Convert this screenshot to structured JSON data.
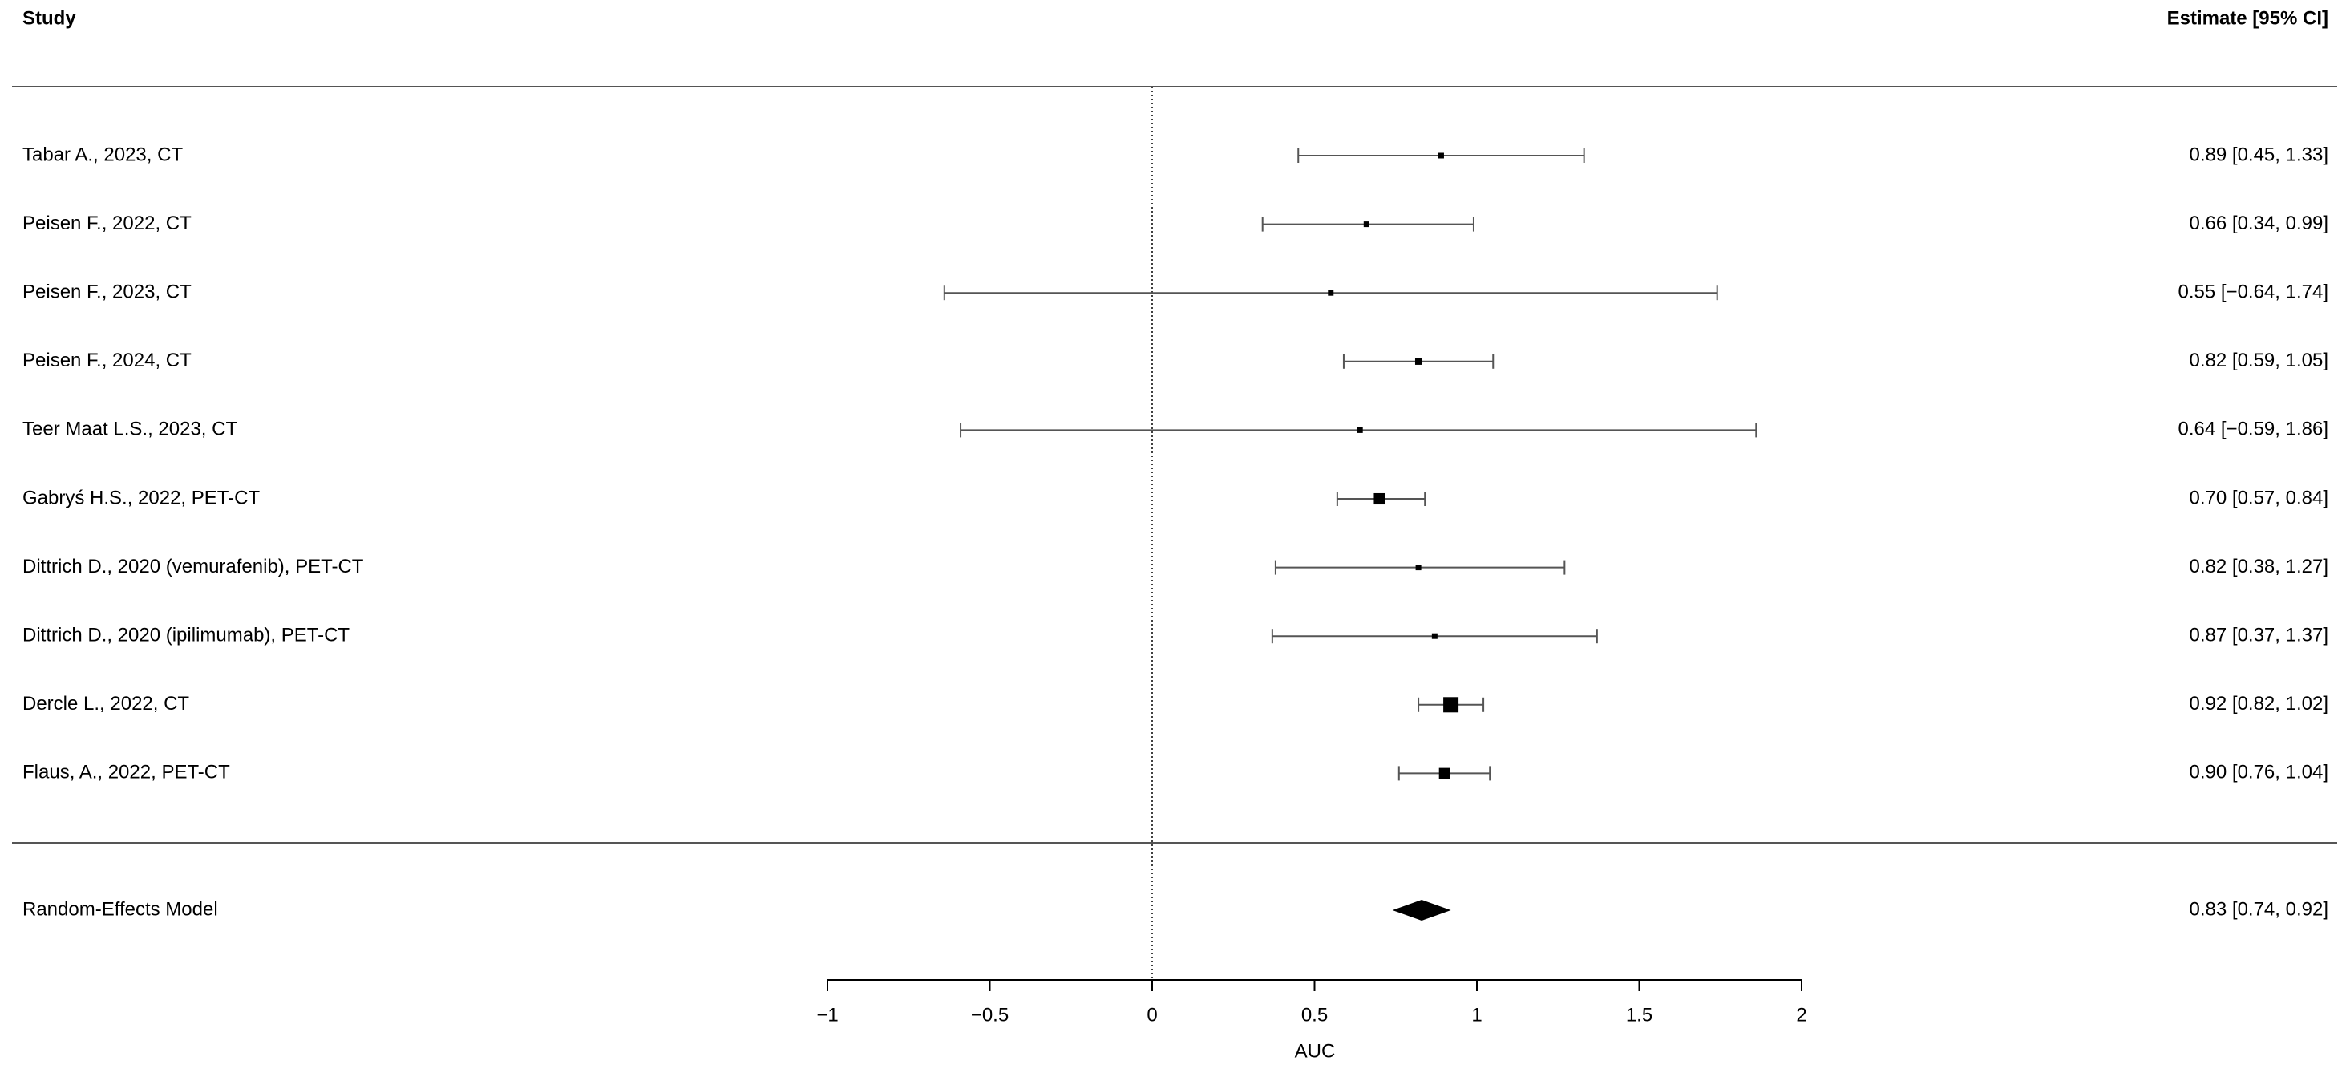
{
  "chart_data": {
    "type": "forest",
    "study_header": "Study",
    "estimate_header": "Estimate [95% CI]",
    "xlabel": "AUC",
    "xlim": [
      -1,
      2
    ],
    "xticks": [
      {
        "value": -1,
        "label": "−1"
      },
      {
        "value": -0.5,
        "label": "−0.5"
      },
      0,
      0.5,
      1,
      1.5,
      2
    ],
    "refline": 0,
    "color": "#000000",
    "studies": [
      {
        "label": "Tabar A., 2023, CT",
        "estimate": 0.89,
        "lower": 0.45,
        "upper": 1.33,
        "estimate_label": "0.89 [0.45, 1.33]"
      },
      {
        "label": "Peisen F., 2022, CT",
        "estimate": 0.66,
        "lower": 0.34,
        "upper": 0.99,
        "estimate_label": "0.66 [0.34, 0.99]"
      },
      {
        "label": "Peisen F., 2023, CT",
        "estimate": 0.55,
        "lower": -0.64,
        "upper": 1.74,
        "estimate_label": "0.55 [−0.64, 1.74]"
      },
      {
        "label": "Peisen F., 2024, CT",
        "estimate": 0.82,
        "lower": 0.59,
        "upper": 1.05,
        "estimate_label": "0.82 [0.59, 1.05]"
      },
      {
        "label": "Teer Maat L.S., 2023, CT",
        "estimate": 0.64,
        "lower": -0.59,
        "upper": 1.86,
        "estimate_label": "0.64 [−0.59, 1.86]"
      },
      {
        "label": "Gabryś H.S., 2022, PET-CT",
        "estimate": 0.7,
        "lower": 0.57,
        "upper": 0.84,
        "estimate_label": "0.70 [0.57, 0.84]"
      },
      {
        "label": "Dittrich D., 2020 (vemurafenib), PET-CT",
        "estimate": 0.82,
        "lower": 0.38,
        "upper": 1.27,
        "estimate_label": "0.82 [0.38, 1.27]"
      },
      {
        "label": "Dittrich D., 2020 (ipilimumab), PET-CT",
        "estimate": 0.87,
        "lower": 0.37,
        "upper": 1.37,
        "estimate_label": "0.87 [0.37, 1.37]"
      },
      {
        "label": "Dercle L., 2022, CT",
        "estimate": 0.92,
        "lower": 0.82,
        "upper": 1.02,
        "estimate_label": "0.92 [0.82, 1.02]"
      },
      {
        "label": "Flaus, A., 2022, PET-CT",
        "estimate": 0.9,
        "lower": 0.76,
        "upper": 1.04,
        "estimate_label": "0.90 [0.76, 1.04]"
      }
    ],
    "summary": {
      "label": "Random-Effects Model",
      "estimate": 0.83,
      "lower": 0.74,
      "upper": 0.92,
      "estimate_label": "0.83 [0.74, 0.92]"
    }
  }
}
